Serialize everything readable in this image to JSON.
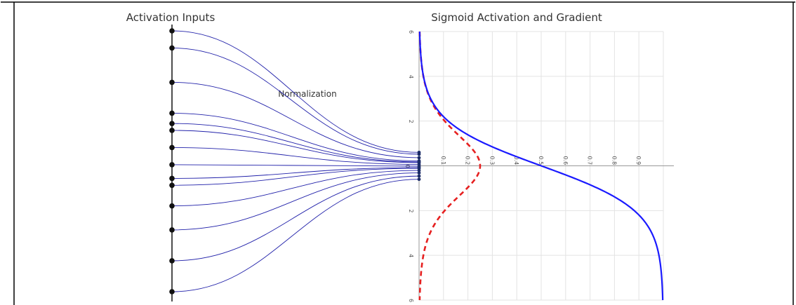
{
  "left_title": "Activation Inputs",
  "right_title": "Sigmoid Activation and Gradient",
  "normalization_label": "Normalization",
  "colors": {
    "line": "#2222aa",
    "dot": "#111111",
    "sigmoid": "#1a1aff",
    "gradient": "#e62020",
    "grid": "#e3e3e3",
    "axis": "#999999"
  },
  "inputs": [
    -6,
    -5.5,
    -4.5,
    -3.6,
    -3.3,
    -3.1,
    -2.6,
    -2.1,
    -1.7,
    -1.5,
    -0.9,
    -0.2,
    0.7,
    1.6
  ],
  "normalized_range": [
    -0.6,
    0.6
  ],
  "chart_data": {
    "type": "line",
    "title": "Sigmoid Activation and Gradient",
    "x_ticks": [
      "0.1",
      "0.2",
      "0.3",
      "0.4",
      "0.5",
      "0.6",
      "0.7",
      "0.8",
      "0.9"
    ],
    "y_ticks": [
      "6",
      "4",
      "2",
      "0",
      "2",
      "4",
      "6"
    ],
    "xlim": [
      0,
      1
    ],
    "ylim": [
      -6,
      6
    ],
    "series": [
      {
        "function": "sigmoid",
        "style": "solid"
      },
      {
        "function": "sigmoid-gradient",
        "style": "dashed"
      }
    ]
  }
}
